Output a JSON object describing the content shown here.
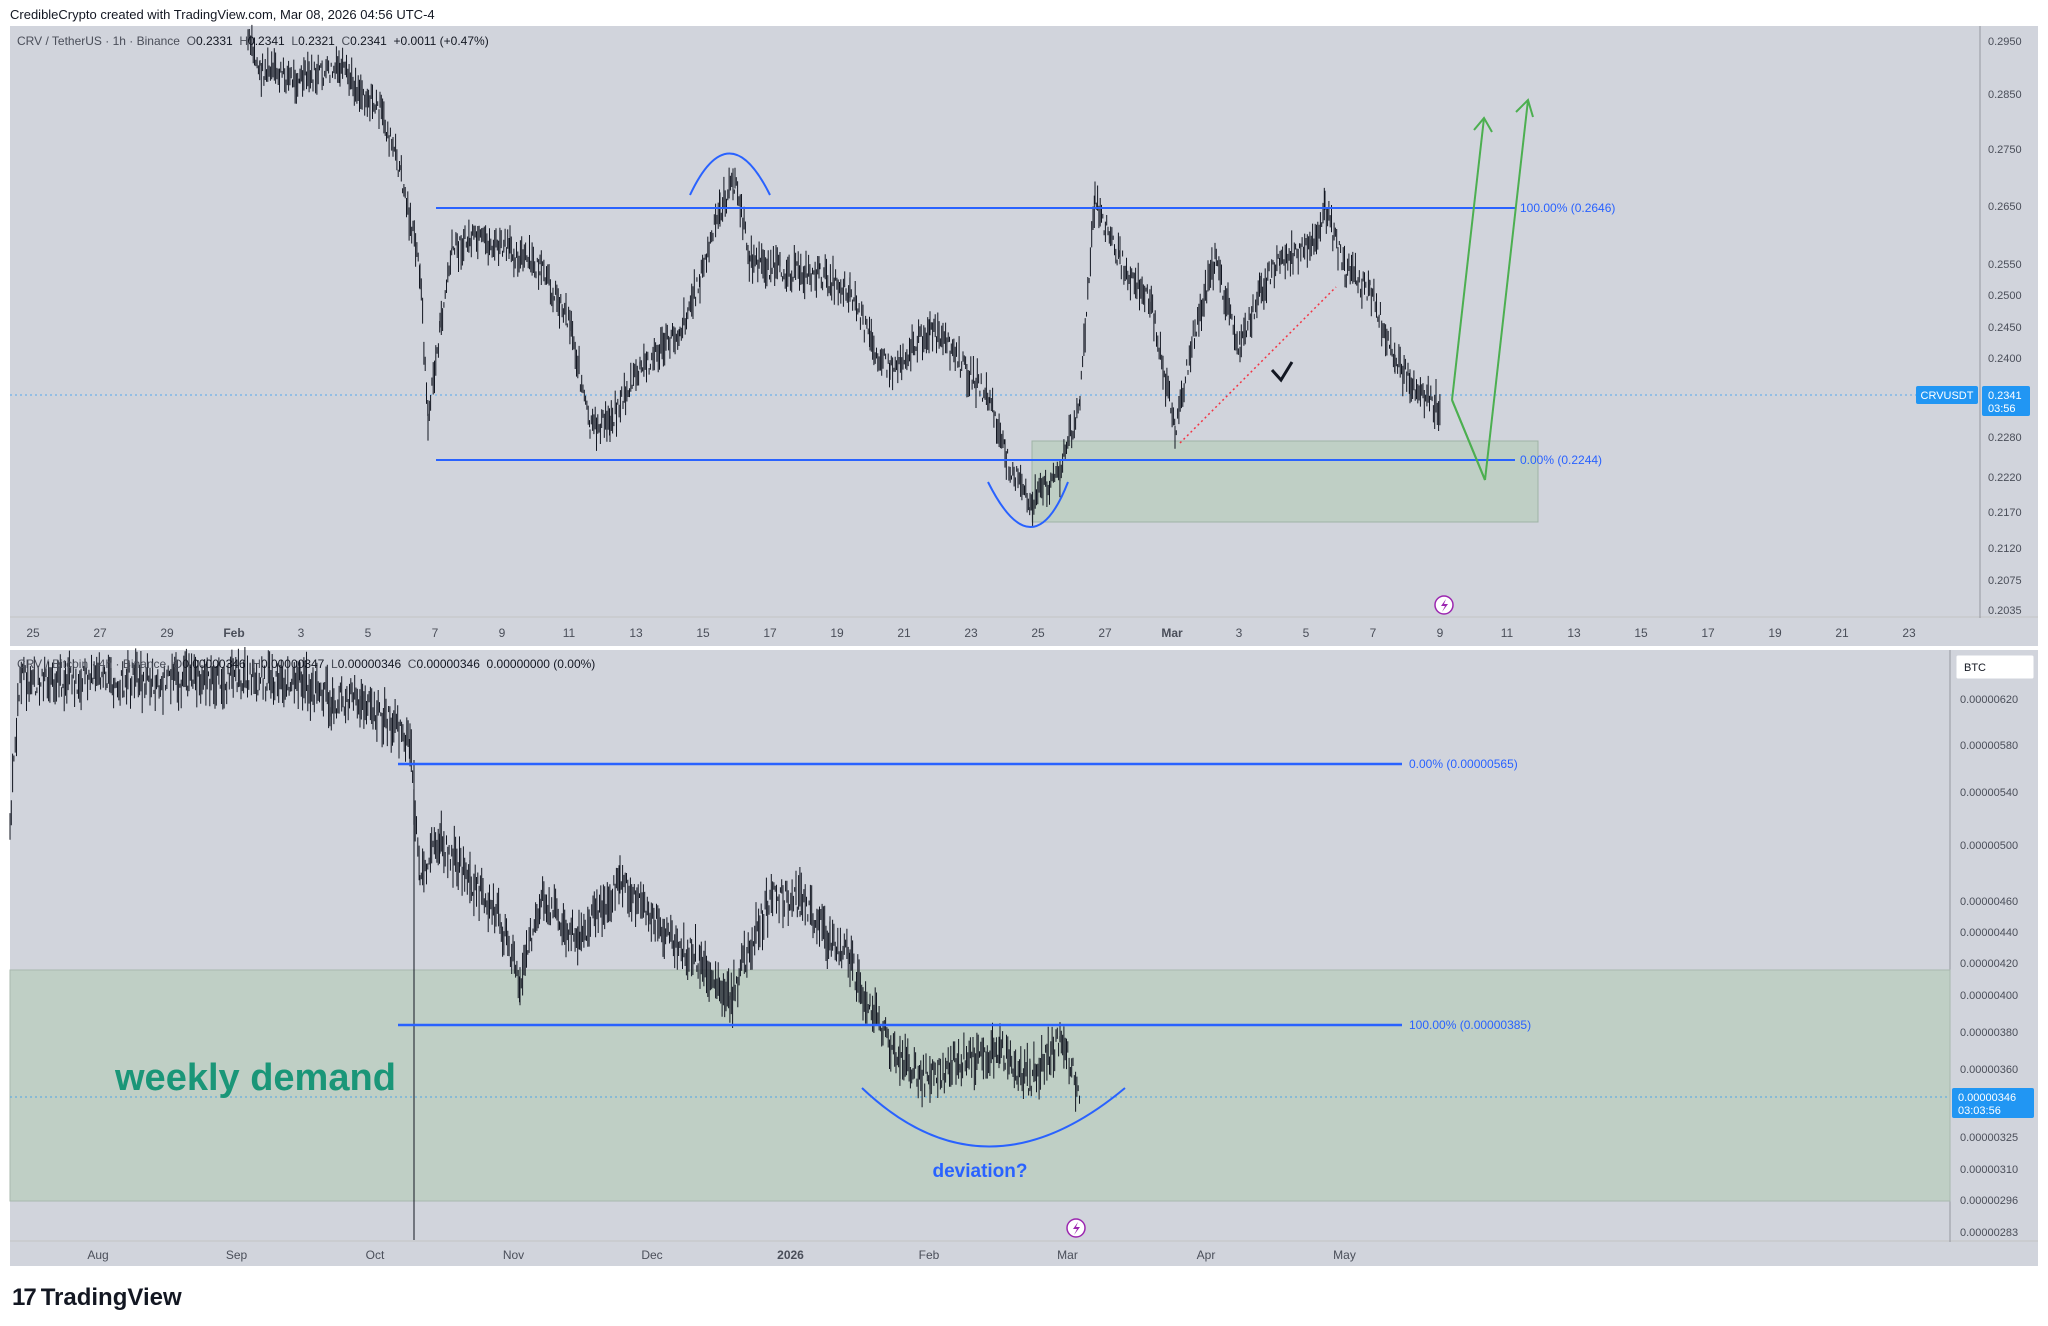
{
  "credit": "CredibleCrypto created with TradingView.com, Mar 08, 2026 04:56 UTC-4",
  "brand": "TradingView",
  "top": {
    "legend": {
      "symbol": "CRV / TetherUS · 1h · Binance",
      "o_label": "O",
      "o": "0.2331",
      "h_label": "H",
      "h": "0.2341",
      "l_label": "L",
      "l": "0.2321",
      "c_label": "C",
      "c": "0.2341",
      "chg": "+0.0011 (+0.47%)"
    },
    "y_ticks": [
      "0.2950",
      "0.2850",
      "0.2750",
      "0.2650",
      "0.2550",
      "0.2500",
      "0.2450",
      "0.2400",
      "0.2280",
      "0.2220",
      "0.2170",
      "0.2120",
      "0.2075",
      "0.2035"
    ],
    "x_ticks": [
      "25",
      "27",
      "29",
      "Feb",
      "3",
      "5",
      "7",
      "9",
      "11",
      "13",
      "15",
      "17",
      "19",
      "21",
      "23",
      "25",
      "27",
      "Mar",
      "3",
      "5",
      "7",
      "9",
      "11",
      "13",
      "15",
      "17",
      "19",
      "21",
      "23"
    ],
    "fib_top_label": "100.00% (0.2646)",
    "fib_bottom_label": "0.00% (0.2244)",
    "price_tag_symbol": "CRVUSDT",
    "price_tag_price": "0.2341",
    "price_tag_timer": "03:56"
  },
  "bottom": {
    "legend": {
      "symbol": "CRV / Bitcoin · 4h · Binance",
      "o_label": "O",
      "o": "0.00000346",
      "h_label": "H",
      "h": "0.00000347",
      "l_label": "L",
      "l": "0.00000346",
      "c_label": "C",
      "c": "0.00000346",
      "chg": "0.00000000 (0.00%)"
    },
    "currency": "BTC",
    "y_ticks": [
      "0.00000620",
      "0.00000580",
      "0.00000540",
      "0.00000500",
      "0.00000460",
      "0.00000440",
      "0.00000420",
      "0.00000400",
      "0.00000380",
      "0.00000360",
      "0.00000325",
      "0.00000310",
      "0.00000296",
      "0.00000283"
    ],
    "x_ticks": [
      "Aug",
      "Sep",
      "Oct",
      "Nov",
      "Dec",
      "2026",
      "Feb",
      "Mar",
      "Apr",
      "May"
    ],
    "fib_top_label": "0.00% (0.00000565)",
    "fib_bottom_label": "100.00% (0.00000385)",
    "price_tag_price": "0.00000346",
    "price_tag_timer": "03:03:56",
    "demand_label": "weekly demand",
    "deviation_label": "deviation?"
  },
  "colors": {
    "pane_bg": "#d1d4dc",
    "fib_blue": "#2962ff",
    "demand_fill": "#bfcfc5",
    "arrow_green": "#4caf50",
    "price_tag": "#2196f3",
    "candle": "#131722"
  }
}
